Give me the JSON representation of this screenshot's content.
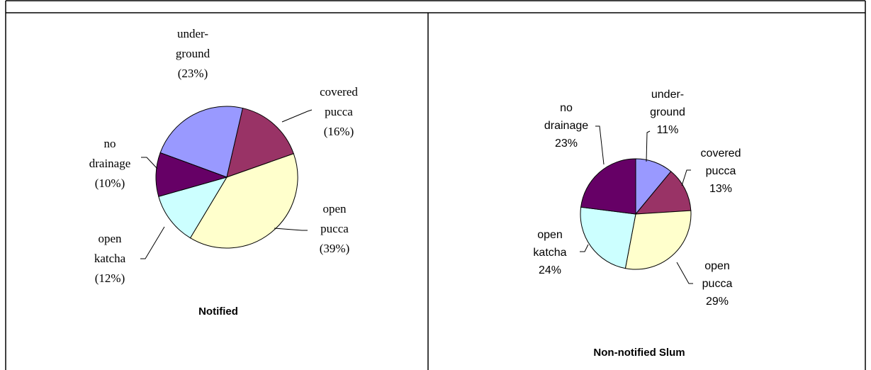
{
  "chart_data": [
    {
      "type": "pie",
      "title": "Notified",
      "categories": [
        "under-\nground",
        "covered\npucca",
        "open\npucca",
        "open\nkatcha",
        "no\ndrainage"
      ],
      "values": [
        23,
        16,
        39,
        12,
        10
      ],
      "value_labels": [
        "(23%)",
        "(16%)",
        "(39%)",
        "(12%)",
        "(10%)"
      ],
      "colors": [
        "#9999ff",
        "#993366",
        "#ffffcc",
        "#ccffff",
        "#660066"
      ]
    },
    {
      "type": "pie",
      "title": "Non-notified Slum",
      "categories": [
        "under-\nground",
        "covered\npucca",
        "open\npucca",
        "open\nkatcha",
        "no\ndrainage"
      ],
      "values": [
        11,
        13,
        29,
        24,
        23
      ],
      "value_labels": [
        "11%",
        "13%",
        "29%",
        "24%",
        "23%"
      ],
      "colors": [
        "#9999ff",
        "#993366",
        "#ffffcc",
        "#ccffff",
        "#660066"
      ]
    }
  ]
}
